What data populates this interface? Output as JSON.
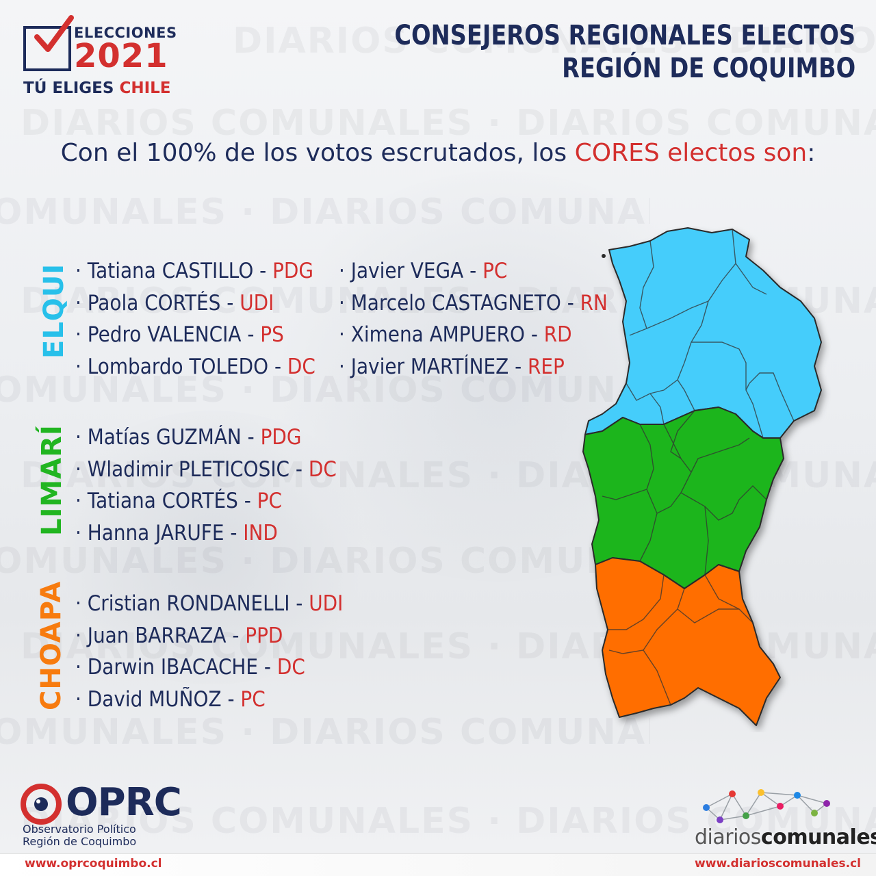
{
  "header": {
    "logo_line1": "ELECCIONES",
    "logo_year": "2021",
    "logo_tag_a": "TÚ ELIGES",
    "logo_tag_b": "CHILE",
    "title_line1": "CONSEJEROS REGIONALES ELECTOS",
    "title_line2": "REGIÓN DE COQUIMBO"
  },
  "subtitle": {
    "before": "Con el 100% de los votos escrutados, los ",
    "highlight": "CORES electos son",
    "after": ":"
  },
  "watermark_text": "DIARIOS COMUNALES  ·  DIARIOS COMUNALES  ·  DIARIOS COMUNALES  ·  DIARIOS COMUNALES",
  "provinces": [
    {
      "name": "ELQUI",
      "color": "#27c0ea",
      "columns": [
        [
          {
            "person": "· Tatiana CASTILLO - ",
            "party": "PDG"
          },
          {
            "person": "· Paola CORTÉS - ",
            "party": "UDI"
          },
          {
            "person": "· Pedro VALENCIA - ",
            "party": "PS"
          },
          {
            "person": "· Lombardo TOLEDO - ",
            "party": "DC"
          }
        ],
        [
          {
            "person": "· Javier VEGA - ",
            "party": "PC"
          },
          {
            "person": "· Marcelo CASTAGNETO - ",
            "party": "RN"
          },
          {
            "person": "· Ximena AMPUERO - ",
            "party": "RD"
          },
          {
            "person": "· Javier MARTÍNEZ - ",
            "party": "REP"
          }
        ]
      ]
    },
    {
      "name": "LIMARÍ",
      "color": "#21b521",
      "columns": [
        [
          {
            "person": "· Matías GUZMÁN - ",
            "party": "PDG"
          },
          {
            "person": "· Wladimir PLETICOSIC - ",
            "party": "DC"
          },
          {
            "person": "· Tatiana CORTÉS - ",
            "party": "PC"
          },
          {
            "person": "· Hanna JARUFE - ",
            "party": "IND"
          }
        ]
      ]
    },
    {
      "name": "CHOAPA",
      "color": "#f77b0f",
      "columns": [
        [
          {
            "person": "· Cristian RONDANELLI - ",
            "party": "UDI"
          },
          {
            "person": "· Juan BARRAZA  - ",
            "party": "PPD"
          },
          {
            "person": "· Darwin IBACACHE - ",
            "party": "DC"
          },
          {
            "person": "· David MUÑOZ - ",
            "party": "PC"
          }
        ]
      ]
    }
  ],
  "map_colors": {
    "elqui": "#44cdfb",
    "limari": "#1fb51f",
    "choapa": "#ff6e00",
    "border": "#2a2a2a"
  },
  "footer": {
    "oprc_name": "OPRC",
    "oprc_sub1": "Observatorio Político",
    "oprc_sub2": "Región de Coquimbo",
    "url_left": "www.oprcoquimbo.cl",
    "brand_light": "diarios",
    "brand_bold": "comunales",
    "url_right": "www.diarioscomunales.cl"
  },
  "accent_red": "#d3302f",
  "navy": "#1d2b5a"
}
